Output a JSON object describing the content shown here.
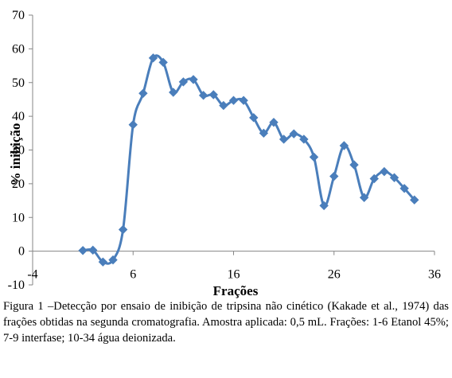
{
  "chart_data": {
    "type": "line",
    "title": "",
    "xlabel": "Frações",
    "ylabel": "% inibição",
    "xlim": [
      -4,
      36
    ],
    "ylim": [
      -10,
      70
    ],
    "xticks": [
      -4,
      6,
      16,
      26,
      36
    ],
    "yticks": [
      -10,
      0,
      10,
      20,
      30,
      40,
      50,
      60,
      70
    ],
    "grid": false,
    "legend": "none",
    "series": [
      {
        "color": "#4a7ebb",
        "marker": "diamond",
        "x": [
          1,
          2,
          3,
          4,
          5,
          6,
          7,
          8,
          9,
          10,
          11,
          12,
          13,
          14,
          15,
          16,
          17,
          18,
          19,
          20,
          21,
          22,
          23,
          24,
          25,
          26,
          27,
          28,
          29,
          30,
          31,
          32,
          33,
          34
        ],
        "y": [
          0.2,
          0.3,
          -3.2,
          -2.6,
          6.4,
          37.5,
          46.8,
          57.3,
          56.0,
          47.1,
          50.2,
          50.9,
          46.2,
          46.4,
          43.2,
          44.7,
          44.7,
          39.6,
          35.0,
          38.2,
          33.2,
          34.8,
          33.2,
          27.9,
          13.5,
          22.2,
          31.3,
          25.6,
          15.9,
          21.5,
          23.6,
          21.8,
          18.6,
          15.2
        ]
      }
    ]
  },
  "caption": "Figura 1 –Detecção por ensaio de inibição de tripsina não cinético (Kakade et al., 1974) das frações obtidas na segunda cromatografia. Amostra aplicada: 0,5 mL. Frações: 1-6 Etanol 45%;  7-9 interfase; 10-34 água deionizada."
}
